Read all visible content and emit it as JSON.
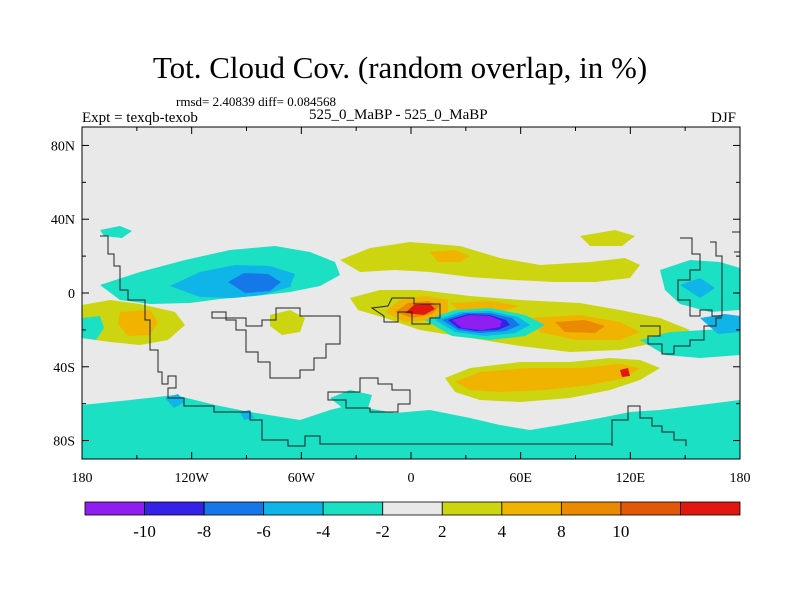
{
  "header": {
    "title": "Tot. Cloud Cov. (random overlap, in %)",
    "stats": "rmsd= 2.40839 diff= 0.084568",
    "expt": "Expt = texqb-texob",
    "case": "525_0_MaBP - 525_0_MaBP",
    "season": "DJF"
  },
  "axes": {
    "x_ticks": [
      "180",
      "120W",
      "60W",
      "0",
      "60E",
      "120E",
      "180"
    ],
    "y_ticks": [
      "80N",
      "40N",
      "0",
      "40S",
      "80S"
    ]
  },
  "colorbar": {
    "labels": [
      "-10",
      "-8",
      "-6",
      "-4",
      "-2",
      "2",
      "4",
      "8",
      "10"
    ],
    "colors": [
      "#8f1ff0",
      "#3422e6",
      "#1678e8",
      "#0fb4e8",
      "#1be0c4",
      "#e9e9e9",
      "#cdd410",
      "#f0b400",
      "#ea8a00",
      "#e25808",
      "#e21710"
    ]
  },
  "map": {
    "background": "#e9e9e9",
    "coastline": "#222222"
  }
}
